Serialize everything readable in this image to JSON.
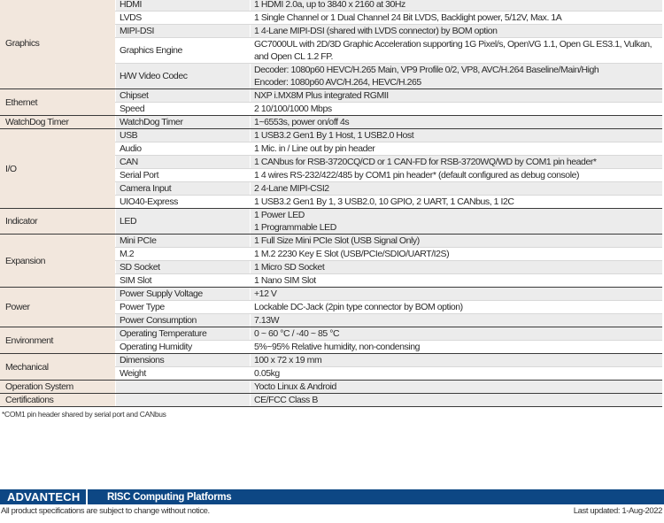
{
  "spec_table": [
    {
      "category": "Graphics",
      "items": [
        {
          "name": "HDMI",
          "value": [
            "1 HDMI 2.0a, up to 3840 x 2160 at 30Hz"
          ]
        },
        {
          "name": "LVDS",
          "value": [
            "1 Single Channel or 1 Dual Channel 24 Bit LVDS, Backlight power, 5/12V, Max. 1A"
          ]
        },
        {
          "name": "MIPI-DSI",
          "value": [
            "1 4-Lane MIPI-DSI (shared with LVDS connector) by BOM option"
          ]
        },
        {
          "name": "Graphics Engine",
          "value": [
            "GC7000UL with 2D/3D Graphic Acceleration supporting 1G Pixel/s, OpenVG 1.1, Open GL ES3.1, Vulkan,",
            "and Open CL 1.2 FP."
          ]
        },
        {
          "name": "H/W Video Codec",
          "value": [
            "Decoder: 1080p60 HEVC/H.265 Main, VP9 Profile 0/2, VP8, AVC/H.264 Baseline/Main/High",
            "Encoder: 1080p60 AVC/H.264, HEVC/H.265"
          ]
        }
      ]
    },
    {
      "category": "Ethernet",
      "items": [
        {
          "name": "Chipset",
          "value": [
            "NXP i.MX8M Plus integrated RGMII"
          ]
        },
        {
          "name": "Speed",
          "value": [
            "2 10/100/1000 Mbps"
          ]
        }
      ]
    },
    {
      "category": "WatchDog Timer",
      "items": [
        {
          "name": "WatchDog Timer",
          "value": [
            "1~6553s, power on/off 4s"
          ]
        }
      ]
    },
    {
      "category": "I/O",
      "items": [
        {
          "name": "USB",
          "value": [
            "1 USB3.2 Gen1 By 1 Host, 1 USB2.0 Host"
          ]
        },
        {
          "name": "Audio",
          "value": [
            "1 Mic. in / Line out by pin header"
          ]
        },
        {
          "name": "CAN",
          "value": [
            "1 CANbus for RSB-3720CQ/CD or 1 CAN-FD for RSB-3720WQ/WD by COM1 pin header*"
          ]
        },
        {
          "name": "Serial Port",
          "value": [
            "1 4 wires RS-232/422/485 by COM1 pin header* (default configured as debug console)"
          ]
        },
        {
          "name": "Camera Input",
          "value": [
            "2 4-Lane MIPI-CSI2"
          ]
        },
        {
          "name": "UIO40-Express",
          "value": [
            "1 USB3.2 Gen1 By 1, 3 USB2.0, 10 GPIO, 2 UART, 1 CANbus, 1 I2C"
          ]
        }
      ]
    },
    {
      "category": "Indicator",
      "items": [
        {
          "name": "LED",
          "value": [
            "1 Power LED",
            "1 Programmable LED"
          ]
        }
      ]
    },
    {
      "category": "Expansion",
      "items": [
        {
          "name": "Mini PCIe",
          "value": [
            "1 Full Size Mini PCIe Slot (USB Signal Only)"
          ]
        },
        {
          "name": "M.2",
          "value": [
            "1 M.2 2230 Key E Slot (USB/PCIe/SDIO/UART/I2S)"
          ]
        },
        {
          "name": "SD Socket",
          "value": [
            "1 Micro SD Socket"
          ]
        },
        {
          "name": "SIM Slot",
          "value": [
            "1 Nano SIM Slot"
          ]
        }
      ]
    },
    {
      "category": "Power",
      "items": [
        {
          "name": "Power Supply Voltage",
          "value": [
            "+12 V"
          ]
        },
        {
          "name": "Power Type",
          "value": [
            "Lockable DC-Jack (2pin type connector by BOM option)"
          ]
        },
        {
          "name": "Power Consumption",
          "value": [
            "7.13W"
          ]
        }
      ]
    },
    {
      "category": "Environment",
      "items": [
        {
          "name": "Operating Temperature",
          "value": [
            "0 ~ 60 °C / -40 ~ 85 °C"
          ]
        },
        {
          "name": "Operating Humidity",
          "value": [
            "5%~95% Relative humidity, non-condensing"
          ]
        }
      ]
    },
    {
      "category": "Mechanical",
      "items": [
        {
          "name": "Dimensions",
          "value": [
            "100 x 72 x 19 mm"
          ]
        },
        {
          "name": "Weight",
          "value": [
            "0.05kg"
          ]
        }
      ]
    },
    {
      "category": "Operation System",
      "items": [
        {
          "name": "",
          "value": [
            "Yocto Linux & Android"
          ]
        }
      ]
    },
    {
      "category": "Certifications",
      "items": [
        {
          "name": "",
          "value": [
            "CE/FCC Class B"
          ]
        }
      ]
    }
  ],
  "footnote": "*COM1 pin header shared by serial port and CANbus",
  "footer": {
    "logo": "ADVANTECH",
    "title": "RISC Computing Platforms",
    "disclaimer": "All product specifications are subject to change without notice.",
    "last_updated": "Last updated: 1-Aug-2022",
    "bar_color": "#0d4784"
  },
  "colors": {
    "category_bg": "#f2e7dd",
    "row_gray": "#ececec",
    "row_white": "#ffffff"
  }
}
